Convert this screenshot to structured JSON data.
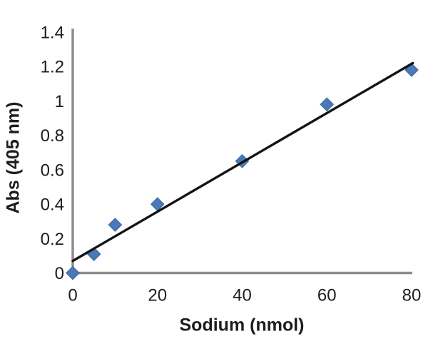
{
  "chart_data": {
    "type": "scatter",
    "title": "",
    "xlabel": "Sodium (nmol)",
    "ylabel": "Abs (405 nm)",
    "xlim": [
      0,
      80
    ],
    "ylim": [
      0,
      1.4
    ],
    "grid": false,
    "legend": "none",
    "x_ticks": [
      {
        "value": 0,
        "label": "0"
      },
      {
        "value": 20,
        "label": "20"
      },
      {
        "value": 40,
        "label": "40"
      },
      {
        "value": 60,
        "label": "60"
      },
      {
        "value": 80,
        "label": "80"
      }
    ],
    "y_ticks": [
      {
        "value": 0,
        "label": "0"
      },
      {
        "value": 0.2,
        "label": "0.2"
      },
      {
        "value": 0.4,
        "label": "0.4"
      },
      {
        "value": 0.6,
        "label": "0.6"
      },
      {
        "value": 0.8,
        "label": "0.8"
      },
      {
        "value": 1,
        "label": "1"
      },
      {
        "value": 1.2,
        "label": "1.2"
      },
      {
        "value": 1.4,
        "label": "1.4"
      }
    ],
    "series": [
      {
        "marker": "diamond",
        "points": [
          {
            "x": 0,
            "y": 0
          },
          {
            "x": 5,
            "y": 0.11
          },
          {
            "x": 10,
            "y": 0.28
          },
          {
            "x": 20,
            "y": 0.4
          },
          {
            "x": 40,
            "y": 0.65
          },
          {
            "x": 60,
            "y": 0.98
          },
          {
            "x": 80,
            "y": 1.18
          }
        ]
      }
    ],
    "trendline": {
      "type": "linear",
      "start": {
        "x": 0,
        "y": 0.07
      },
      "end": {
        "x": 80.3,
        "y": 1.22
      }
    },
    "colors": {
      "marker_fill": "#4b79b7",
      "marker_stroke": "#3c68a3",
      "trendline": "#141414",
      "axis_line": "#8e8e8e",
      "text": "#1d1d1d",
      "background": "#ffffff"
    }
  }
}
